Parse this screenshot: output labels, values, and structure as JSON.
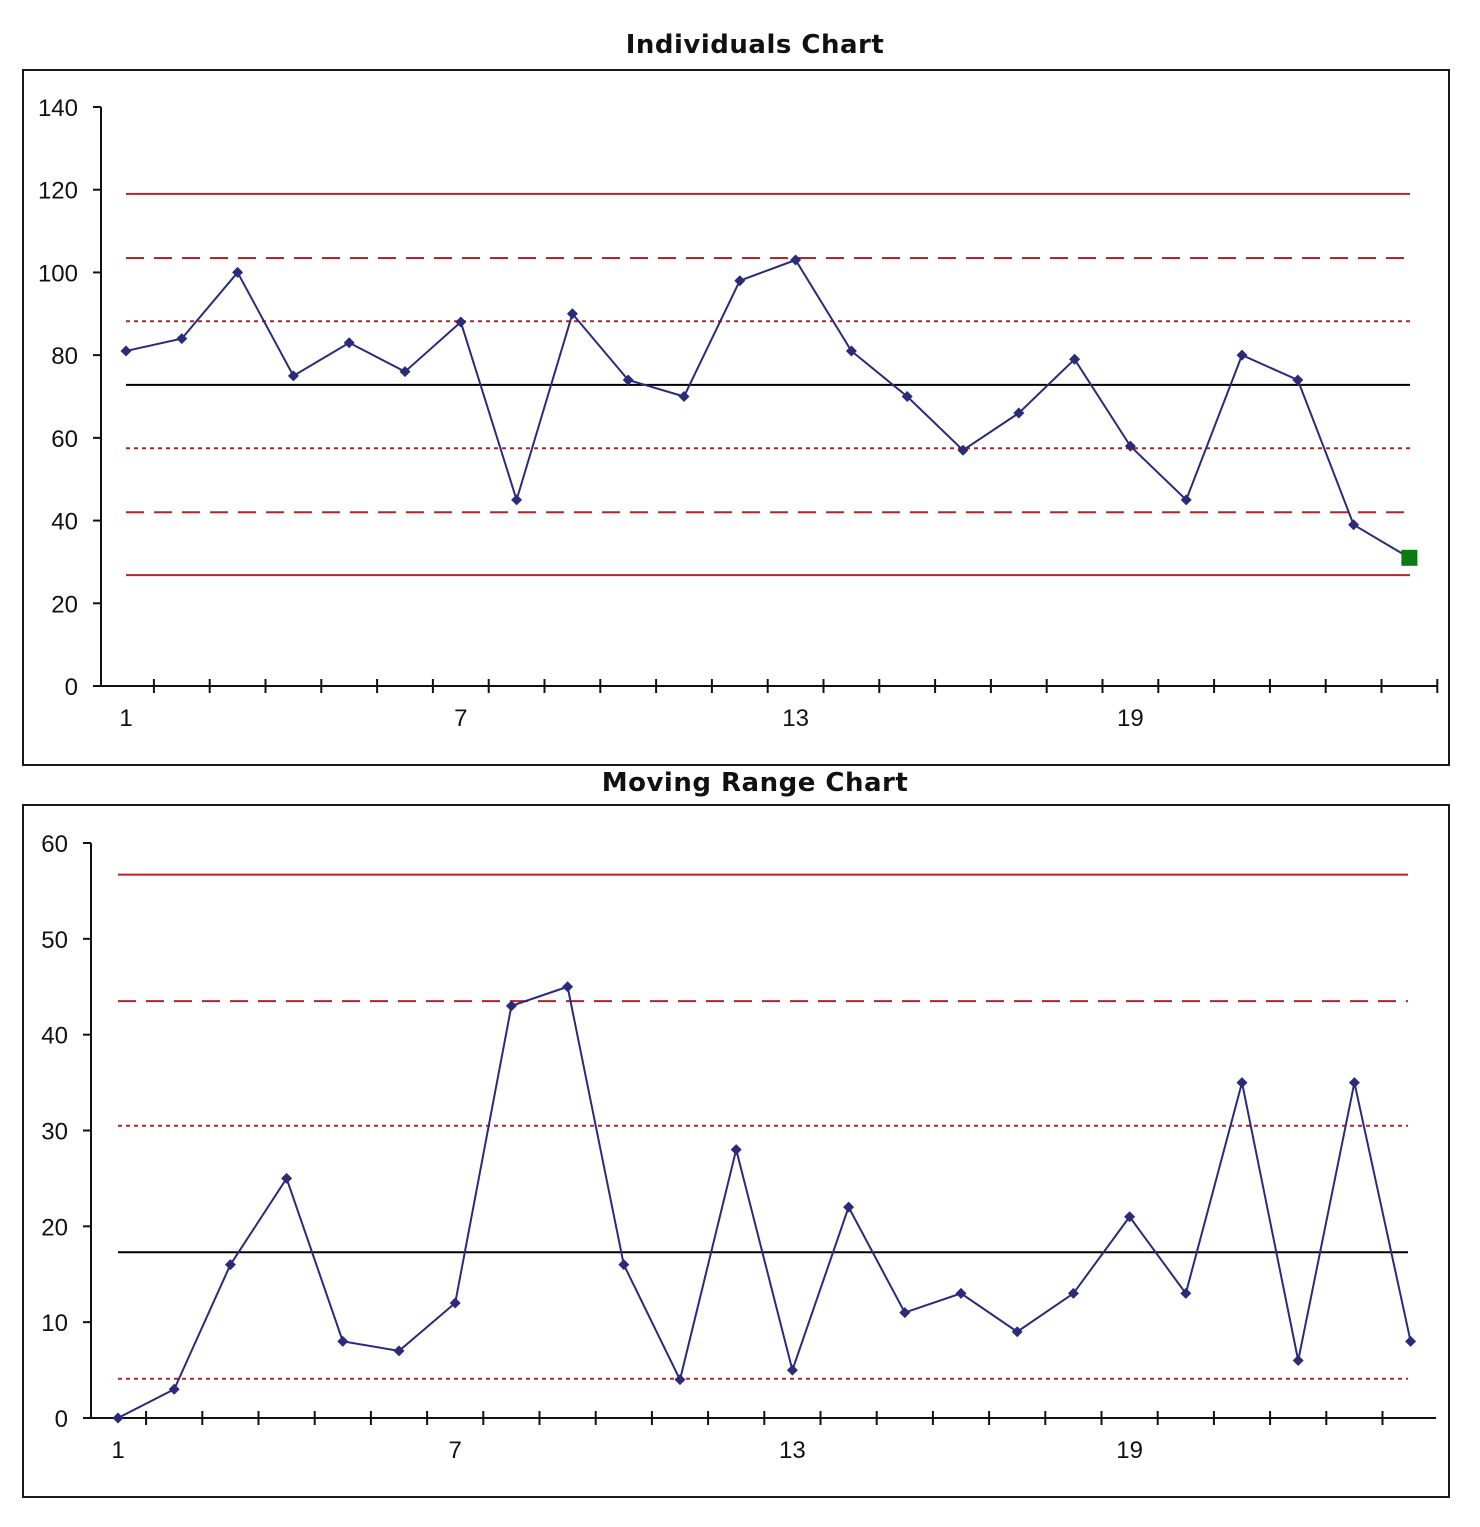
{
  "colors": {
    "data_line": "#2b2b7a",
    "center_line": "#000000",
    "limit_line": "#b5232b",
    "last_point": "#0a7a12"
  },
  "chart_data": [
    {
      "type": "line",
      "title": "Individuals Chart",
      "x": [
        1,
        2,
        3,
        4,
        5,
        6,
        7,
        8,
        9,
        10,
        11,
        12,
        13,
        14,
        15,
        16,
        17,
        18,
        19,
        20,
        21,
        22,
        23,
        24
      ],
      "x_tick_labels": [
        "1",
        "7",
        "13",
        "19"
      ],
      "x_tick_label_positions": [
        1,
        7,
        13,
        19
      ],
      "series": [
        {
          "values": [
            81,
            84,
            100,
            75,
            83,
            76,
            88,
            45,
            90,
            74,
            70,
            98,
            103,
            81,
            70,
            57,
            66,
            79,
            58,
            45,
            80,
            74,
            39,
            31
          ]
        }
      ],
      "highlighted_point": {
        "x": 24,
        "y": 31,
        "color": "green",
        "marker": "square"
      },
      "center_line": 72.8,
      "limit_lines": [
        {
          "value": 119,
          "style": "solid"
        },
        {
          "value": 103.5,
          "style": "dashed"
        },
        {
          "value": 88.2,
          "style": "dotted"
        },
        {
          "value": 57.5,
          "style": "dotted"
        },
        {
          "value": 42,
          "style": "dashed"
        },
        {
          "value": 26.8,
          "style": "solid"
        }
      ],
      "ylim": [
        0,
        140
      ],
      "yticks": [
        0,
        20,
        40,
        60,
        80,
        100,
        120,
        140
      ],
      "grid": false,
      "legend": "none"
    },
    {
      "type": "line",
      "title": "Moving Range Chart",
      "x": [
        1,
        2,
        3,
        4,
        5,
        6,
        7,
        8,
        9,
        10,
        11,
        12,
        13,
        14,
        15,
        16,
        17,
        18,
        19,
        20,
        21,
        22,
        23,
        24
      ],
      "x_tick_labels": [
        "1",
        "7",
        "13",
        "19"
      ],
      "x_tick_label_positions": [
        1,
        7,
        13,
        19
      ],
      "series": [
        {
          "values": [
            0,
            3,
            16,
            25,
            8,
            7,
            12,
            43,
            45,
            16,
            4,
            28,
            5,
            22,
            11,
            13,
            9,
            13,
            21,
            13,
            35,
            6,
            35,
            8
          ]
        }
      ],
      "center_line": 17.3,
      "limit_lines": [
        {
          "value": 56.7,
          "style": "solid"
        },
        {
          "value": 43.5,
          "style": "dashed"
        },
        {
          "value": 30.5,
          "style": "dotted"
        },
        {
          "value": 4.1,
          "style": "dotted"
        }
      ],
      "ylim": [
        0,
        60
      ],
      "yticks": [
        0,
        10,
        20,
        30,
        40,
        50,
        60
      ],
      "grid": false,
      "legend": "none"
    }
  ]
}
